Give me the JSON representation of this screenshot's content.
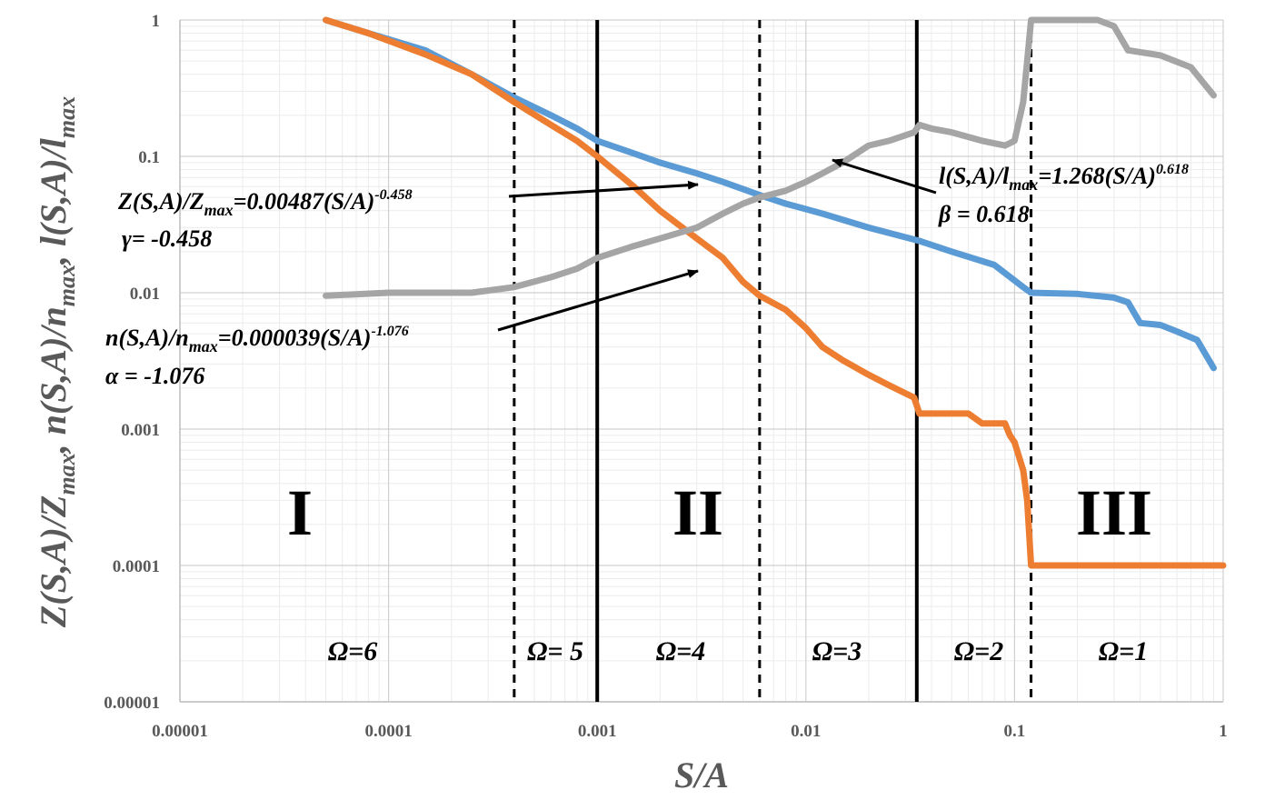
{
  "chart_data": {
    "type": "line",
    "x_scale": "log",
    "y_scale": "log",
    "xlim": [
      1e-05,
      1
    ],
    "ylim": [
      1e-05,
      1
    ],
    "xlabel": "S/A",
    "ylabel_parts": [
      "Z(S,A)/Z",
      "max",
      ", n(S,A)/n",
      "max",
      ", l(S,A)/l",
      "max"
    ],
    "x_ticks": [
      "0.00001",
      "0.0001",
      "0.001",
      "0.01",
      "0.1",
      "1"
    ],
    "y_ticks": [
      "0.00001",
      "0.0001",
      "0.001",
      "0.01",
      "0.1",
      "1"
    ],
    "grid": true,
    "series": [
      {
        "key": "Z",
        "color": "#5B9BD5",
        "points": [
          [
            5e-05,
            1.0
          ],
          [
            8e-05,
            0.8
          ],
          [
            0.00015,
            0.6
          ],
          [
            0.00025,
            0.4
          ],
          [
            0.0004,
            0.27
          ],
          [
            0.0006,
            0.2
          ],
          [
            0.0008,
            0.16
          ],
          [
            0.001,
            0.13
          ],
          [
            0.0015,
            0.105
          ],
          [
            0.002,
            0.09
          ],
          [
            0.003,
            0.075
          ],
          [
            0.004,
            0.065
          ],
          [
            0.006,
            0.052
          ],
          [
            0.008,
            0.045
          ],
          [
            0.012,
            0.038
          ],
          [
            0.02,
            0.03
          ],
          [
            0.035,
            0.024
          ],
          [
            0.05,
            0.02
          ],
          [
            0.08,
            0.016
          ],
          [
            0.11,
            0.011
          ],
          [
            0.12,
            0.01
          ],
          [
            0.2,
            0.0098
          ],
          [
            0.3,
            0.0092
          ],
          [
            0.35,
            0.0085
          ],
          [
            0.4,
            0.006
          ],
          [
            0.5,
            0.0058
          ],
          [
            0.6,
            0.0052
          ],
          [
            0.75,
            0.0045
          ],
          [
            0.9,
            0.0028
          ]
        ]
      },
      {
        "key": "n",
        "color": "#ED7D31",
        "points": [
          [
            5e-05,
            1.0
          ],
          [
            8e-05,
            0.8
          ],
          [
            0.00015,
            0.56
          ],
          [
            0.00025,
            0.4
          ],
          [
            0.0004,
            0.25
          ],
          [
            0.0006,
            0.17
          ],
          [
            0.0008,
            0.13
          ],
          [
            0.001,
            0.1
          ],
          [
            0.0015,
            0.06
          ],
          [
            0.002,
            0.04
          ],
          [
            0.003,
            0.025
          ],
          [
            0.004,
            0.018
          ],
          [
            0.005,
            0.012
          ],
          [
            0.006,
            0.0095
          ],
          [
            0.008,
            0.0075
          ],
          [
            0.01,
            0.0055
          ],
          [
            0.012,
            0.004
          ],
          [
            0.015,
            0.0032
          ],
          [
            0.02,
            0.0025
          ],
          [
            0.025,
            0.0021
          ],
          [
            0.033,
            0.0017
          ],
          [
            0.035,
            0.0013
          ],
          [
            0.06,
            0.0013
          ],
          [
            0.07,
            0.0011
          ],
          [
            0.09,
            0.0011
          ],
          [
            0.095,
            0.0009
          ],
          [
            0.1,
            0.0008
          ],
          [
            0.11,
            0.0005
          ],
          [
            0.115,
            0.0003
          ],
          [
            0.12,
            0.0001
          ],
          [
            1,
            0.0001
          ]
        ]
      },
      {
        "key": "l",
        "color": "#A5A5A5",
        "points": [
          [
            5e-05,
            0.0095
          ],
          [
            0.0001,
            0.01
          ],
          [
            0.00025,
            0.01
          ],
          [
            0.0004,
            0.011
          ],
          [
            0.0006,
            0.013
          ],
          [
            0.0008,
            0.015
          ],
          [
            0.001,
            0.018
          ],
          [
            0.0015,
            0.022
          ],
          [
            0.002,
            0.025
          ],
          [
            0.003,
            0.03
          ],
          [
            0.004,
            0.038
          ],
          [
            0.005,
            0.045
          ],
          [
            0.006,
            0.05
          ],
          [
            0.008,
            0.056
          ],
          [
            0.01,
            0.065
          ],
          [
            0.012,
            0.075
          ],
          [
            0.015,
            0.09
          ],
          [
            0.02,
            0.12
          ],
          [
            0.025,
            0.13
          ],
          [
            0.033,
            0.15
          ],
          [
            0.035,
            0.17
          ],
          [
            0.04,
            0.16
          ],
          [
            0.05,
            0.15
          ],
          [
            0.07,
            0.13
          ],
          [
            0.09,
            0.12
          ],
          [
            0.1,
            0.13
          ],
          [
            0.11,
            0.25
          ],
          [
            0.115,
            0.5
          ],
          [
            0.12,
            1.0
          ],
          [
            0.25,
            1.0
          ],
          [
            0.3,
            0.9
          ],
          [
            0.35,
            0.6
          ],
          [
            0.5,
            0.55
          ],
          [
            0.7,
            0.45
          ],
          [
            0.9,
            0.28
          ]
        ]
      }
    ],
    "vlines": [
      {
        "x": 0.0004,
        "style": "dashed"
      },
      {
        "x": 0.001,
        "style": "solid"
      },
      {
        "x": 0.006,
        "style": "dashed"
      },
      {
        "x": 0.034,
        "style": "solid"
      },
      {
        "x": 0.12,
        "style": "dashed"
      }
    ],
    "annotations": {
      "z_eq": {
        "a": "Z(S,A)/Z",
        "b": "max",
        "c": "=0.00487(S/A)",
        "d": "-0.458"
      },
      "z_exp": "γ= -0.458",
      "n_eq": {
        "a": "n(S,A)/n",
        "b": "max",
        "c": "=0.000039(S/A)",
        "d": "-1.076"
      },
      "n_exp": "α = -1.076",
      "l_eq": {
        "a": "l(S,A)/l",
        "b": "max",
        "c": "=1.268(S/A)",
        "d": "0.618"
      },
      "l_exp": "β = 0.618"
    },
    "regions": [
      "I",
      "II",
      "III"
    ],
    "omega_labels": [
      "Ω=6",
      "Ω= 5",
      "Ω=4",
      "Ω=3",
      "Ω=2",
      "Ω=1"
    ]
  }
}
